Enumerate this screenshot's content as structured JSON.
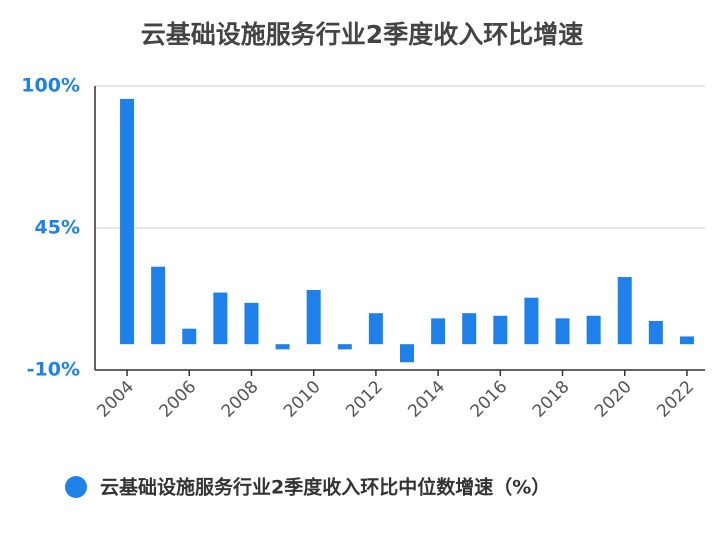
{
  "chart_data": {
    "type": "bar",
    "title": "云基础设施服务行业2季度收入环比增速",
    "categories": [
      "2004",
      null,
      "2006",
      null,
      "2008",
      null,
      "2010",
      null,
      "2012",
      null,
      "2014",
      null,
      "2016",
      null,
      "2018",
      null,
      "2020",
      null,
      "2022"
    ],
    "series": [
      {
        "name": "云基础设施服务行业2季度收入环比中位数增速（%）",
        "color": "#1e80e8",
        "values": [
          95,
          30,
          6,
          20,
          16,
          -2,
          21,
          -2,
          12,
          -7,
          10,
          12,
          11,
          18,
          10,
          11,
          26,
          9,
          3
        ]
      }
    ],
    "ylim": [
      -10,
      100
    ],
    "yticks": [
      {
        "value": -10,
        "label": "-10%"
      },
      {
        "value": 45,
        "label": "45%"
      },
      {
        "value": 100,
        "label": "100%"
      }
    ],
    "grid": true
  }
}
